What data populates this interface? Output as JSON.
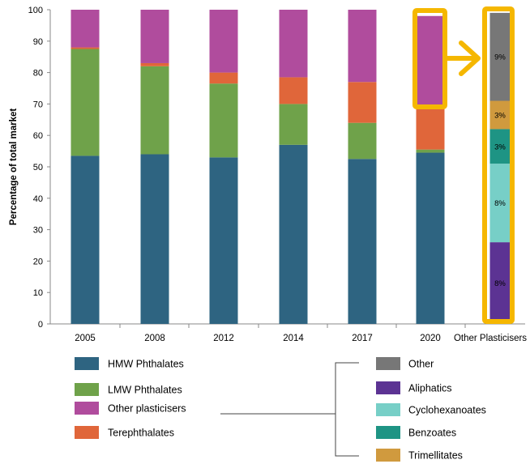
{
  "chart_data": {
    "type": "bar",
    "stacked": true,
    "ylabel": "Percentage of total market",
    "xlabel": "",
    "ylim": [
      0,
      100
    ],
    "yticks": [
      0,
      10,
      20,
      30,
      40,
      50,
      60,
      70,
      80,
      90,
      100
    ],
    "grid": false,
    "categories": [
      "2005",
      "2008",
      "2012",
      "2014",
      "2017",
      "2020"
    ],
    "series": [
      {
        "name": "HMW Phthalates",
        "color": "#2e6481",
        "values": [
          53.5,
          54,
          53,
          57,
          52.5,
          54.5
        ]
      },
      {
        "name": "LMW Phthalates",
        "color": "#6fa24a",
        "values": [
          34,
          28,
          23.5,
          13,
          11.5,
          1
        ]
      },
      {
        "name": "Terephthalates",
        "color": "#e0663a",
        "values": [
          0.5,
          1,
          3.5,
          8.5,
          13,
          14
        ]
      },
      {
        "name": "Other plasticisers",
        "color": "#b04c9d",
        "values": [
          12,
          17,
          20,
          21.5,
          23,
          28.5
        ]
      }
    ],
    "breakdown": {
      "label": "Other Plasticisers",
      "segments": [
        {
          "name": "Aliphatics",
          "color": "#5c3393",
          "value": 8,
          "label": "8%"
        },
        {
          "name": "Cyclohexanoates",
          "color": "#77cfc7",
          "value": 8,
          "label": "8%"
        },
        {
          "name": "Benzoates",
          "color": "#1e9484",
          "value": 3,
          "label": "3%"
        },
        {
          "name": "Trimellitates",
          "color": "#d09a3e",
          "value": 3,
          "label": "3%"
        },
        {
          "name": "Other",
          "color": "#777777",
          "value": 9,
          "label": "9%"
        }
      ]
    },
    "highlight_color": "#f5b700",
    "axis_color": "#888888",
    "legend": {
      "left": [
        "HMW Phthalates",
        "LMW Phthalates",
        "Other plasticisers",
        "Terephthalates"
      ],
      "right": [
        "Other",
        "Aliphatics",
        "Cyclohexanoates",
        "Benzoates",
        "Trimellitates"
      ],
      "placement": "bottom"
    }
  }
}
